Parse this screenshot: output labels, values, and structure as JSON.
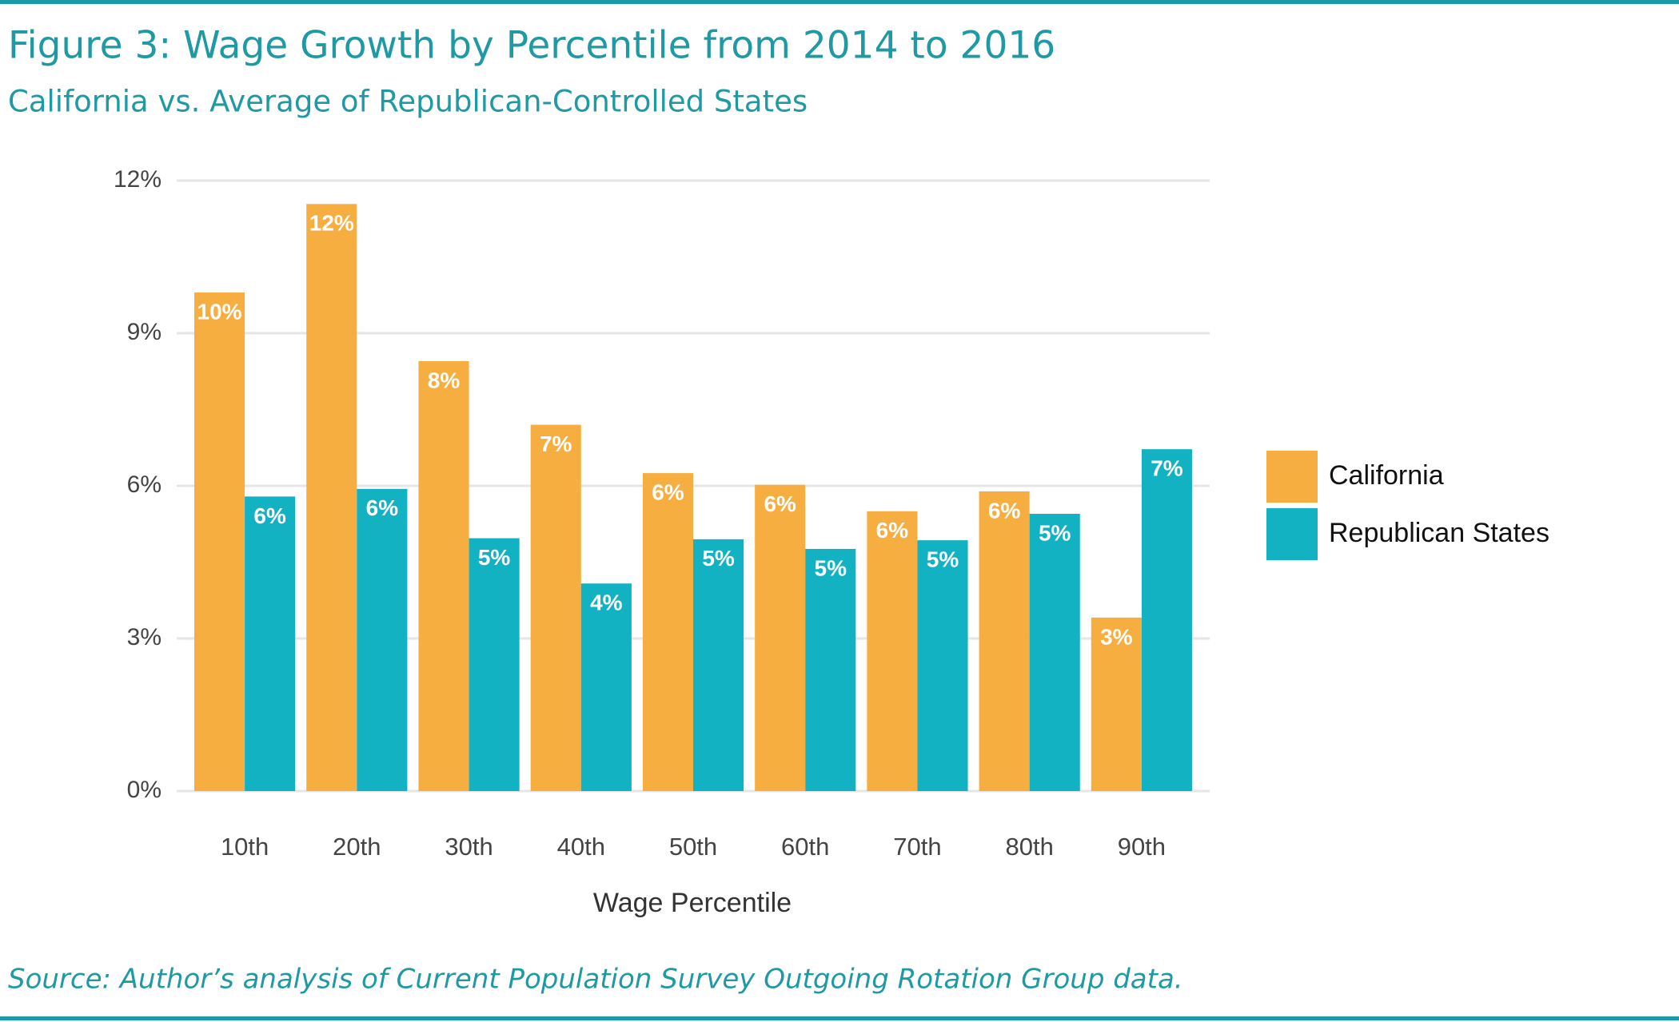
{
  "chart_data": {
    "type": "bar",
    "title": "Figure 3: Wage Growth by Percentile from 2014 to 2016",
    "subtitle": "California vs. Average of Republican-Controlled States",
    "source": "Source: Author’s analysis of Current Population Survey Outgoing Rotation Group data.",
    "x_label": "Wage Percentile",
    "categories": [
      "10th",
      "20th",
      "30th",
      "40th",
      "50th",
      "60th",
      "70th",
      "80th",
      "90th"
    ],
    "series": [
      {
        "name": "California",
        "color": "#f7ae40",
        "values": [
          9.8,
          11.54,
          8.45,
          7.2,
          6.25,
          6.02,
          5.5,
          5.89,
          3.41
        ],
        "value_labels": [
          "10%",
          "12%",
          "8%",
          "7%",
          "6%",
          "6%",
          "6%",
          "6%",
          "3%"
        ]
      },
      {
        "name": "Republican States",
        "color": "#13b2c3",
        "values": [
          5.79,
          5.94,
          4.97,
          4.08,
          4.95,
          4.76,
          4.93,
          5.45,
          6.72
        ],
        "value_labels": [
          "6%",
          "6%",
          "5%",
          "4%",
          "5%",
          "5%",
          "5%",
          "5%",
          "7%"
        ]
      }
    ],
    "ylim": [
      0,
      12
    ],
    "yticks": [
      {
        "value": 0,
        "label": "0%"
      },
      {
        "value": 3,
        "label": "3%"
      },
      {
        "value": 6,
        "label": "6%"
      },
      {
        "value": 9,
        "label": "9%"
      },
      {
        "value": 12,
        "label": "12%"
      }
    ],
    "grid": true,
    "legend": "right"
  }
}
